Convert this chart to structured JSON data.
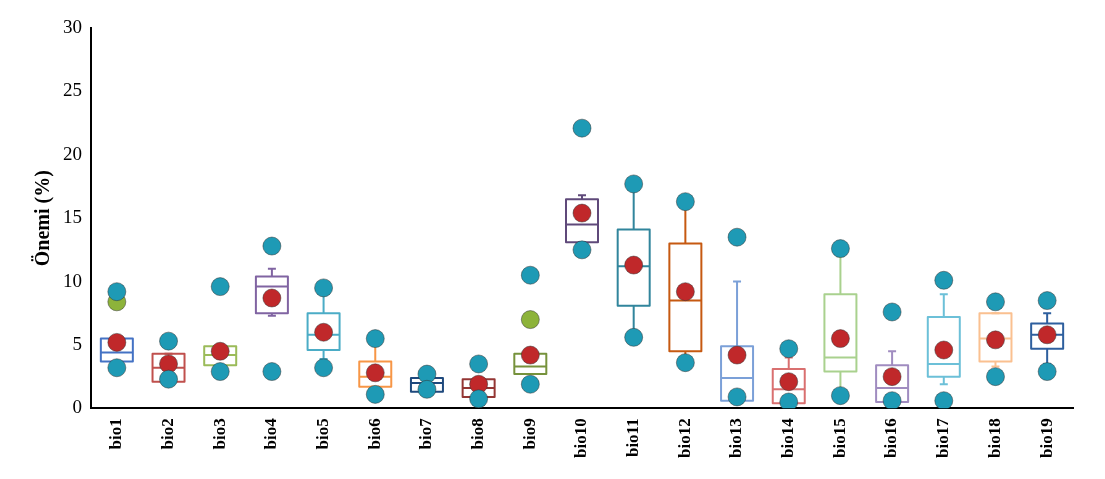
{
  "chart_data": {
    "type": "box",
    "ylabel": "Önemi (%)",
    "categories": [
      "bio1",
      "bio2",
      "bio3",
      "bio4",
      "bio5",
      "bio6",
      "bio7",
      "bio8",
      "bio9",
      "bio10",
      "bio11",
      "bio12",
      "bio13",
      "bio14",
      "bio15",
      "bio16",
      "bio17",
      "bio18",
      "bio19"
    ],
    "ylim": [
      0,
      30
    ],
    "yticks": [
      0,
      5,
      10,
      15,
      20,
      25,
      30
    ],
    "grid": false,
    "legend": false,
    "marker": "circle",
    "series": [
      {
        "type": "box",
        "colors": [
          "#4472c4",
          "#c0504d",
          "#9bbb59",
          "#8064a2",
          "#4bacc6",
          "#f79646",
          "#1f497d",
          "#943634",
          "#76923c",
          "#5f497a",
          "#31859c",
          "#c65911",
          "#7ba0d8",
          "#d97070",
          "#a9d18e",
          "#a08cc0",
          "#6cc0d8",
          "#fac090",
          "#2e5f9e"
        ],
        "boxes": [
          {
            "low": 3.7,
            "q1": 3.7,
            "median": 4.4,
            "q3": 5.5,
            "high": 5.5
          },
          {
            "low": 2.1,
            "q1": 2.1,
            "median": 3.2,
            "q3": 4.3,
            "high": 4.3
          },
          {
            "low": 3.4,
            "q1": 3.4,
            "median": 4.2,
            "q3": 4.9,
            "high": 4.9
          },
          {
            "low": 7.3,
            "q1": 7.5,
            "median": 9.6,
            "q3": 10.4,
            "high": 11.0
          },
          {
            "low": 3.9,
            "q1": 4.6,
            "median": 5.8,
            "q3": 7.5,
            "high": 9.0
          },
          {
            "low": 1.7,
            "q1": 1.7,
            "median": 2.5,
            "q3": 3.7,
            "high": 5.0
          },
          {
            "low": 1.3,
            "q1": 1.3,
            "median": 2.0,
            "q3": 2.4,
            "high": 2.4
          },
          {
            "low": 0.9,
            "q1": 0.9,
            "median": 1.6,
            "q3": 2.3,
            "high": 2.3
          },
          {
            "low": 2.7,
            "q1": 2.7,
            "median": 3.3,
            "q3": 4.3,
            "high": 4.3
          },
          {
            "low": 13.1,
            "q1": 13.1,
            "median": 14.5,
            "q3": 16.5,
            "high": 16.8
          },
          {
            "low": 5.6,
            "q1": 8.1,
            "median": 11.2,
            "q3": 14.1,
            "high": 17.7
          },
          {
            "low": 3.6,
            "q1": 4.5,
            "median": 8.5,
            "q3": 13.0,
            "high": 16.3
          },
          {
            "low": 0.6,
            "q1": 0.6,
            "median": 2.4,
            "q3": 4.9,
            "high": 10.0
          },
          {
            "low": 0.4,
            "q1": 0.4,
            "median": 1.5,
            "q3": 3.1,
            "high": 4.0
          },
          {
            "low": 1.0,
            "q1": 2.9,
            "median": 4.0,
            "q3": 9.0,
            "high": 12.0
          },
          {
            "low": 0.5,
            "q1": 0.5,
            "median": 1.6,
            "q3": 3.4,
            "high": 4.5
          },
          {
            "low": 1.9,
            "q1": 2.5,
            "median": 3.5,
            "q3": 7.2,
            "high": 9.0
          },
          {
            "low": 3.3,
            "q1": 3.7,
            "median": 5.5,
            "q3": 7.5,
            "high": 7.5
          },
          {
            "low": 3.5,
            "q1": 4.7,
            "median": 5.8,
            "q3": 6.7,
            "high": 7.5
          }
        ]
      },
      {
        "type": "scatter",
        "color": "#1e9ab5",
        "x": [
          "bio1",
          "bio1",
          "bio2",
          "bio2",
          "bio3",
          "bio3",
          "bio4",
          "bio4",
          "bio5",
          "bio5",
          "bio6",
          "bio6",
          "bio7",
          "bio7",
          "bio8",
          "bio8",
          "bio9",
          "bio9",
          "bio10",
          "bio10",
          "bio11",
          "bio11",
          "bio12",
          "bio12",
          "bio13",
          "bio13",
          "bio14",
          "bio14",
          "bio15",
          "bio15",
          "bio16",
          "bio16",
          "bio17",
          "bio17",
          "bio18",
          "bio18",
          "bio19",
          "bio19"
        ],
        "values": [
          9.2,
          3.2,
          5.3,
          2.3,
          9.6,
          2.9,
          12.8,
          2.9,
          9.5,
          3.2,
          5.5,
          1.1,
          2.7,
          1.5,
          3.5,
          0.75,
          10.5,
          1.9,
          22.1,
          12.5,
          17.7,
          5.6,
          16.3,
          3.6,
          13.5,
          0.9,
          4.7,
          0.5,
          12.6,
          1.0,
          7.6,
          0.6,
          10.1,
          0.6,
          8.4,
          2.5,
          8.5,
          2.9
        ]
      },
      {
        "type": "scatter",
        "color": "#c0282a",
        "x": [
          "bio1",
          "bio2",
          "bio3",
          "bio4",
          "bio5",
          "bio6",
          "bio8",
          "bio9",
          "bio10",
          "bio11",
          "bio12",
          "bio13",
          "bio14",
          "bio15",
          "bio16",
          "bio17",
          "bio18",
          "bio19"
        ],
        "values": [
          5.2,
          3.5,
          4.5,
          8.7,
          6.0,
          2.8,
          1.9,
          4.2,
          15.4,
          11.3,
          9.2,
          4.2,
          2.1,
          5.5,
          2.5,
          4.6,
          5.4,
          5.8
        ]
      },
      {
        "type": "scatter",
        "color": "#8db33a",
        "x": [
          "bio1",
          "bio9"
        ],
        "values": [
          8.4,
          7.0
        ]
      }
    ]
  }
}
